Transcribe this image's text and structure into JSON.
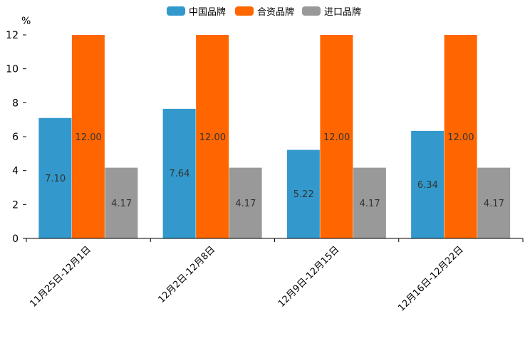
{
  "chart_data": {
    "type": "bar",
    "title": "",
    "ylabel": "%",
    "xlabel": "",
    "ylim": [
      0,
      12
    ],
    "yticks": [
      0,
      2,
      4,
      6,
      8,
      10,
      12
    ],
    "categories": [
      "11月25日-12月1日",
      "12月2日-12月8日",
      "12月9日-12月15日",
      "12月16日-12月22日"
    ],
    "series": [
      {
        "name": "中国品牌",
        "color": "#3399CC",
        "values": [
          7.1,
          7.64,
          5.22,
          6.34
        ],
        "labels": [
          "7.10",
          "7.64",
          "5.22",
          "6.34"
        ]
      },
      {
        "name": "合资品牌",
        "color": "#FF6600",
        "values": [
          12.0,
          12.0,
          12.0,
          12.0
        ],
        "labels": [
          "12.00",
          "12.00",
          "12.00",
          "12.00"
        ]
      },
      {
        "name": "进口品牌",
        "color": "#999999",
        "values": [
          4.17,
          4.17,
          4.17,
          4.17
        ],
        "labels": [
          "4.17",
          "4.17",
          "4.17",
          "4.17"
        ]
      }
    ],
    "legend_position": "top-center"
  }
}
